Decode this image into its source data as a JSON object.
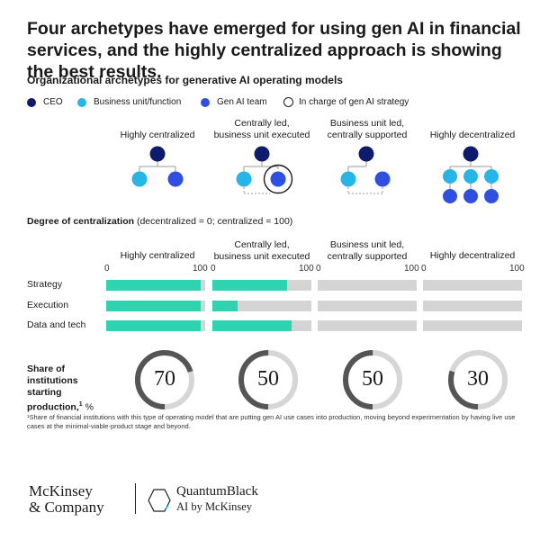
{
  "title": "Four archetypes have emerged for using gen AI in financial services, and the highly centralized approach is showing the best results.",
  "subtitle": "Organizational archetypes for generative AI operating models",
  "legend": {
    "ceo": "CEO",
    "business_unit": "Business unit/function",
    "gen_ai_team": "Gen AI team",
    "in_charge": "In charge of gen AI strategy"
  },
  "colors": {
    "ceo": "#0e1a6b",
    "business_unit": "#27b4e6",
    "gen_ai_team": "#2f4fe0",
    "bar_fill": "#2fd3b0",
    "bar_track": "#d4d4d4",
    "donut_fill": "#555555",
    "donut_track": "#d6d6d6"
  },
  "archetypes": [
    {
      "label_line1": "Highly centralized",
      "label_line2": ""
    },
    {
      "label_line1": "Centrally led,",
      "label_line2": "business unit executed"
    },
    {
      "label_line1": "Business unit led,",
      "label_line2": "centrally supported"
    },
    {
      "label_line1": "Highly decentralized",
      "label_line2": ""
    }
  ],
  "centralization": {
    "heading_bold": "Degree of centralization",
    "heading_normal": "(decentralized = 0; centralized = 100)",
    "tick_min": "0",
    "tick_max": "100",
    "rows": [
      "Strategy",
      "Execution",
      "Data and tech"
    ]
  },
  "share": {
    "label_line1": "Share of institutions",
    "label_line2": "starting",
    "label_line3": "production,",
    "footnote_mark": "1",
    "unit": " %"
  },
  "footnote": "¹Share of financial institutions with this type of operating model that are putting gen AI use cases into production, moving beyond experimentation by having live use cases at the minimal-viable-product stage and beyond.",
  "logos": {
    "mckinsey_line1": "McKinsey",
    "mckinsey_line2": "& Company",
    "qb_line1": "QuantumBlack",
    "qb_line2": "AI by McKinsey"
  },
  "chart_data": [
    {
      "type": "bar",
      "title": "Degree of centralization",
      "ylim": [
        0,
        100
      ],
      "categories": [
        "Highly centralized",
        "Centrally led, business unit executed",
        "Business unit led, centrally supported",
        "Highly decentralized"
      ],
      "series": [
        {
          "name": "Strategy",
          "values": [
            95,
            75,
            0,
            0
          ]
        },
        {
          "name": "Execution",
          "values": [
            95,
            25,
            0,
            0
          ]
        },
        {
          "name": "Data and tech",
          "values": [
            95,
            80,
            0,
            0
          ]
        }
      ]
    },
    {
      "type": "pie",
      "title": "Share of institutions starting production",
      "categories": [
        "Highly centralized",
        "Centrally led, business unit executed",
        "Business unit led, centrally supported",
        "Highly decentralized"
      ],
      "values": [
        70,
        50,
        50,
        30
      ],
      "value_labels": [
        "70",
        "50",
        "50",
        "30"
      ]
    }
  ]
}
